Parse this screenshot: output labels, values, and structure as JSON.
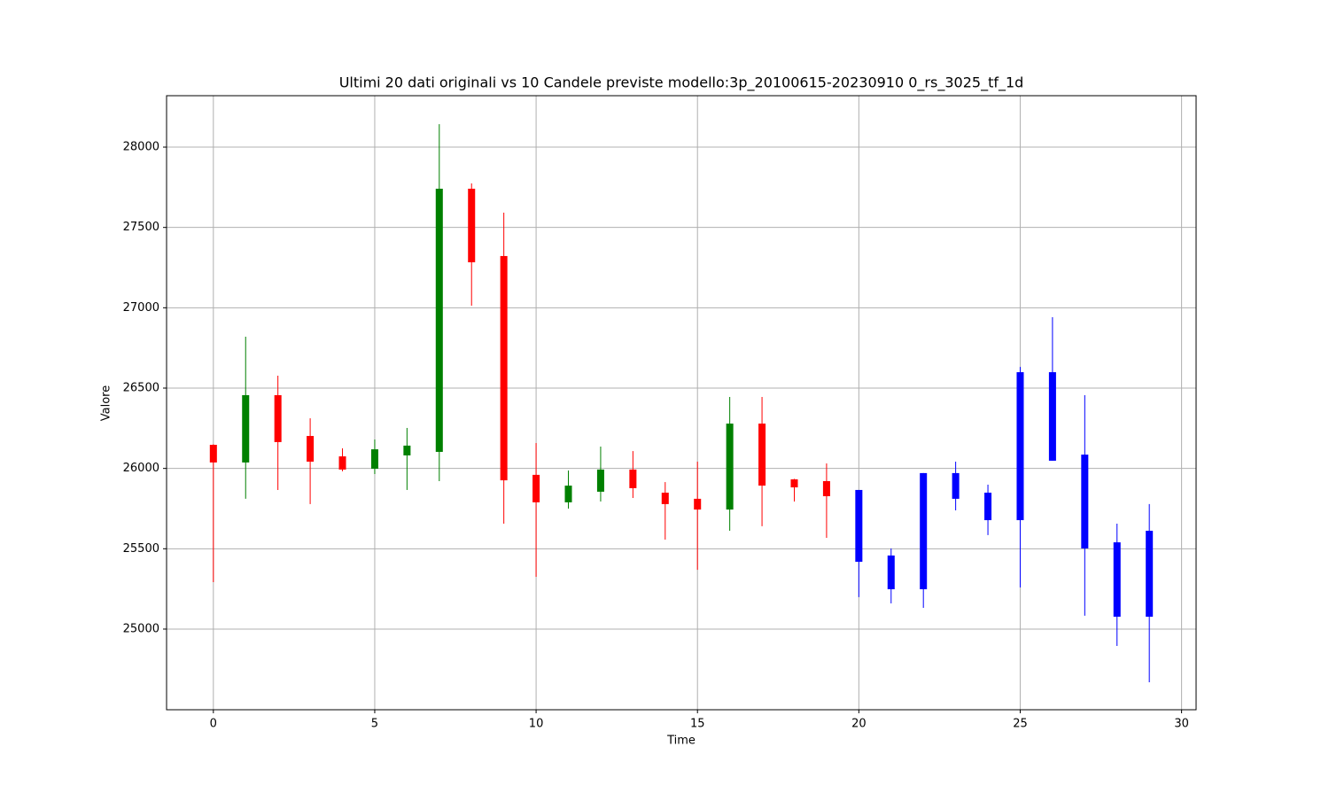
{
  "chart_data": {
    "type": "candlestick",
    "title": "Ultimi 20 dati originali vs 10 Candele previste modello:3p_20100615-20230910 0_rs_3025_tf_1d",
    "xlabel": "Time",
    "ylabel": "Valore",
    "x": [
      0,
      1,
      2,
      3,
      4,
      5,
      6,
      7,
      8,
      9,
      10,
      11,
      12,
      13,
      14,
      15,
      16,
      17,
      18,
      19,
      20,
      21,
      22,
      23,
      24,
      25,
      26,
      27,
      28,
      29
    ],
    "open": [
      26147,
      26037,
      26456,
      26202,
      26075,
      25998,
      26081,
      26103,
      27741,
      27322,
      25960,
      25789,
      25855,
      25993,
      25849,
      25811,
      25744,
      26279,
      25932,
      25921,
      25866,
      25458,
      25971,
      25971,
      25849,
      26599,
      26599,
      26086,
      25540,
      25612
    ],
    "high": [
      26150,
      26820,
      26577,
      26312,
      26125,
      26180,
      26252,
      28143,
      27774,
      27592,
      26158,
      25987,
      26136,
      26108,
      25915,
      26042,
      26445,
      26445,
      25935,
      26031,
      25866,
      25502,
      25971,
      26042,
      25899,
      26632,
      26941,
      26456,
      25656,
      25778
    ],
    "low": [
      25292,
      25811,
      25866,
      25778,
      25982,
      25965,
      25866,
      25921,
      27013,
      25656,
      25325,
      25750,
      25794,
      25816,
      25557,
      25369,
      25612,
      25640,
      25794,
      25568,
      25199,
      25160,
      25132,
      25739,
      25585,
      25259,
      26048,
      25083,
      24895,
      24669
    ],
    "close": [
      26037,
      26456,
      26164,
      26042,
      25993,
      26119,
      26142,
      27741,
      27283,
      25926,
      25789,
      25893,
      25993,
      25877,
      25778,
      25744,
      26279,
      25893,
      25882,
      25827,
      25419,
      25248,
      25248,
      25811,
      25678,
      25678,
      26048,
      25502,
      25077,
      25077
    ],
    "colors": [
      "#ff0000",
      "#008000",
      "#ff0000",
      "#ff0000",
      "#ff0000",
      "#008000",
      "#008000",
      "#008000",
      "#ff0000",
      "#ff0000",
      "#ff0000",
      "#008000",
      "#008000",
      "#ff0000",
      "#ff0000",
      "#ff0000",
      "#008000",
      "#ff0000",
      "#ff0000",
      "#ff0000",
      "#0000ff",
      "#0000ff",
      "#0000ff",
      "#0000ff",
      "#0000ff",
      "#0000ff",
      "#0000ff",
      "#0000ff",
      "#0000ff",
      "#0000ff"
    ],
    "xlim": [
      -1.45,
      30.45
    ],
    "ylim": [
      24498,
      28320
    ],
    "xticks": [
      0,
      5,
      10,
      15,
      20,
      25,
      30
    ],
    "yticks": [
      25000,
      25500,
      26000,
      26500,
      27000,
      27500,
      28000
    ],
    "grid": true
  }
}
